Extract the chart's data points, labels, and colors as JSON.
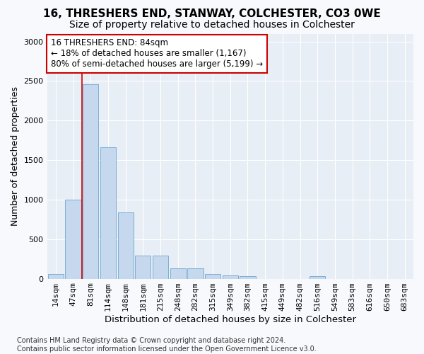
{
  "title": "16, THRESHERS END, STANWAY, COLCHESTER, CO3 0WE",
  "subtitle": "Size of property relative to detached houses in Colchester",
  "xlabel": "Distribution of detached houses by size in Colchester",
  "ylabel": "Number of detached properties",
  "bar_color": "#c5d8ed",
  "bar_edge_color": "#7bafd4",
  "vline_color": "#cc0000",
  "vline_x_index": 2,
  "categories": [
    "14sqm",
    "47sqm",
    "81sqm",
    "114sqm",
    "148sqm",
    "181sqm",
    "215sqm",
    "248sqm",
    "282sqm",
    "315sqm",
    "349sqm",
    "382sqm",
    "415sqm",
    "449sqm",
    "482sqm",
    "516sqm",
    "549sqm",
    "583sqm",
    "616sqm",
    "650sqm",
    "683sqm"
  ],
  "values": [
    55,
    1000,
    2460,
    1660,
    840,
    290,
    290,
    130,
    130,
    55,
    40,
    30,
    0,
    0,
    0,
    30,
    0,
    0,
    0,
    0,
    0
  ],
  "ylim": [
    0,
    3100
  ],
  "yticks": [
    0,
    500,
    1000,
    1500,
    2000,
    2500,
    3000
  ],
  "annotation_line1": "16 THRESHERS END: 84sqm",
  "annotation_line2": "← 18% of detached houses are smaller (1,167)",
  "annotation_line3": "80% of semi-detached houses are larger (5,199) →",
  "footer_text": "Contains HM Land Registry data © Crown copyright and database right 2024.\nContains public sector information licensed under the Open Government Licence v3.0.",
  "fig_bg": "#f7f9fc",
  "plot_bg": "#e8eef5",
  "grid_color": "#ffffff",
  "title_fontsize": 11,
  "subtitle_fontsize": 10,
  "xlabel_fontsize": 9.5,
  "ylabel_fontsize": 9,
  "tick_fontsize": 8,
  "annot_fontsize": 8.5,
  "footer_fontsize": 7
}
